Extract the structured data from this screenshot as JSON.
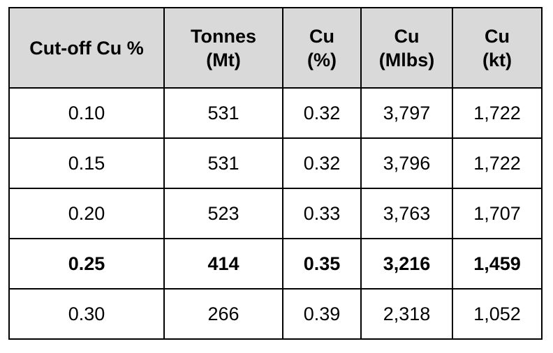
{
  "table": {
    "headers": [
      {
        "line1": "Cut-off Cu %",
        "line2": ""
      },
      {
        "line1": "Tonnes",
        "line2": "(Mt)"
      },
      {
        "line1": "Cu",
        "line2": "(%)"
      },
      {
        "line1": "Cu",
        "line2": "(Mlbs)"
      },
      {
        "line1": "Cu",
        "line2": "(kt)"
      }
    ],
    "rows": [
      {
        "cutoff": "0.10",
        "tonnes": "531",
        "cu_pct": "0.32",
        "cu_mlbs": "3,797",
        "cu_kt": "1,722",
        "bold": false
      },
      {
        "cutoff": "0.15",
        "tonnes": "531",
        "cu_pct": "0.32",
        "cu_mlbs": "3,796",
        "cu_kt": "1,722",
        "bold": false
      },
      {
        "cutoff": "0.20",
        "tonnes": "523",
        "cu_pct": "0.33",
        "cu_mlbs": "3,763",
        "cu_kt": "1,707",
        "bold": false
      },
      {
        "cutoff": "0.25",
        "tonnes": "414",
        "cu_pct": "0.35",
        "cu_mlbs": "3,216",
        "cu_kt": "1,459",
        "bold": true
      },
      {
        "cutoff": "0.30",
        "tonnes": "266",
        "cu_pct": "0.39",
        "cu_mlbs": "2,318",
        "cu_kt": "1,052",
        "bold": false
      }
    ]
  },
  "colors": {
    "header_background": "#d9d9d9",
    "border": "#000000",
    "text": "#000000"
  }
}
